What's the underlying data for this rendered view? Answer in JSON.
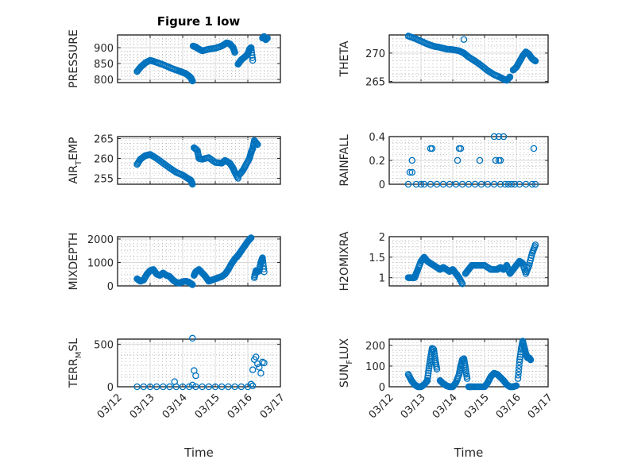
{
  "figure": {
    "title": "Figure 1 low",
    "marker_color": "#0072BD",
    "x_tick_labels": [
      "03/12",
      "03/13",
      "03/14",
      "03/15",
      "03/16",
      "03/17"
    ],
    "x_label": "Time"
  },
  "chart_data": [
    {
      "type": "scatter",
      "title": "Figure 1 low",
      "ylabel": "PRESSURE",
      "xlabel": "",
      "xlim": [
        0,
        5
      ],
      "ylim": [
        790,
        940
      ],
      "yticks": [
        800,
        850,
        900
      ],
      "xticks": [
        "03/12",
        "03/13",
        "03/14",
        "03/15",
        "03/16",
        "03/17"
      ],
      "grid": "on (major + minor)",
      "segments": [
        {
          "x": [
            0.6,
            0.7,
            0.85,
            1.0,
            1.1,
            1.3,
            1.5,
            1.7,
            1.9,
            2.0,
            2.1,
            2.2,
            2.25,
            2.3
          ],
          "y": [
            825,
            838,
            852,
            860,
            857,
            850,
            842,
            833,
            826,
            822,
            818,
            810,
            805,
            795
          ]
        },
        {
          "x": [
            2.32,
            2.4,
            2.5,
            2.6,
            2.8,
            3.0,
            3.2,
            3.35,
            3.45,
            3.55,
            3.6
          ],
          "y": [
            905,
            902,
            895,
            890,
            895,
            898,
            905,
            915,
            912,
            900,
            885
          ]
        },
        {
          "x": [
            3.7,
            3.75,
            3.8,
            3.9,
            4.0,
            4.05,
            4.1,
            4.15
          ],
          "y": [
            848,
            855,
            862,
            870,
            880,
            895,
            900,
            860
          ]
        },
        {
          "x": [
            4.45,
            4.5,
            4.55,
            4.6
          ],
          "y": [
            930,
            935,
            925,
            930
          ]
        }
      ]
    },
    {
      "type": "scatter",
      "ylabel": "THETA",
      "xlabel": "",
      "xlim": [
        0,
        5
      ],
      "ylim": [
        264.8,
        273.2
      ],
      "yticks": [
        265,
        270
      ],
      "xticks": [
        "03/12",
        "03/13",
        "03/14",
        "03/15",
        "03/16",
        "03/17"
      ],
      "grid": "on (major + minor)",
      "segments": [
        {
          "x": [
            0.6,
            0.8,
            1.0,
            1.2,
            1.4,
            1.6,
            1.8,
            2.0,
            2.2,
            2.35,
            2.5,
            2.7,
            2.9,
            3.1,
            3.3,
            3.5,
            3.6,
            3.7,
            3.8
          ],
          "y": [
            273,
            272.6,
            272.1,
            271.6,
            271.2,
            271.0,
            270.7,
            270.6,
            270.4,
            270.0,
            269.3,
            268.6,
            267.8,
            266.9,
            266.2,
            265.7,
            265.4,
            265.2,
            265.8
          ]
        },
        {
          "x": [
            3.9,
            4.0,
            4.1,
            4.2,
            4.3,
            4.4,
            4.5,
            4.6
          ],
          "y": [
            267.0,
            267.5,
            268.5,
            269.5,
            270.2,
            269.8,
            269.0,
            268.6
          ]
        },
        {
          "x": [
            2.35
          ],
          "y": [
            272.4
          ]
        }
      ]
    },
    {
      "type": "scatter",
      "ylabel": "AIR_TEMP",
      "xlabel": "",
      "xlim": [
        0,
        5
      ],
      "ylim": [
        253.5,
        265.5
      ],
      "yticks": [
        255,
        260,
        265
      ],
      "xticks": [
        "03/12",
        "03/13",
        "03/14",
        "03/15",
        "03/16",
        "03/17"
      ],
      "grid": "on (major + minor)",
      "segments": [
        {
          "x": [
            0.6,
            0.7,
            0.85,
            1.0,
            1.2,
            1.4,
            1.6,
            1.8,
            2.0,
            2.15,
            2.25,
            2.3
          ],
          "y": [
            258.5,
            259.8,
            260.7,
            261.0,
            260.0,
            258.8,
            257.6,
            256.5,
            255.8,
            255.0,
            254.5,
            253.5
          ]
        },
        {
          "x": [
            2.35,
            2.45,
            2.5,
            2.6,
            2.8,
            3.0,
            3.2,
            3.3,
            3.45,
            3.55,
            3.6,
            3.7
          ],
          "y": [
            262.7,
            262.0,
            260.0,
            259.8,
            260.2,
            259.0,
            258.8,
            259.5,
            258.8,
            257.5,
            256.5,
            255.0
          ]
        },
        {
          "x": [
            3.75,
            3.85,
            3.95,
            4.05,
            4.1,
            4.15,
            4.2,
            4.3
          ],
          "y": [
            256.0,
            257.0,
            258.5,
            260.0,
            261.5,
            262.5,
            264.5,
            263.5
          ]
        }
      ]
    },
    {
      "type": "scatter",
      "ylabel": "RAINFALL",
      "xlabel": "",
      "xlim": [
        0,
        5
      ],
      "ylim": [
        0,
        0.4
      ],
      "yticks": [
        0,
        0.2,
        0.4
      ],
      "xticks": [
        "03/12",
        "03/13",
        "03/14",
        "03/15",
        "03/16",
        "03/17"
      ],
      "grid": "on (major + minor)",
      "points": {
        "x": [
          0.6,
          0.65,
          0.72,
          0.72,
          0.85,
          1.0,
          1.1,
          1.3,
          1.5,
          1.7,
          1.9,
          2.1,
          2.3,
          2.5,
          2.7,
          2.9,
          3.1,
          3.3,
          3.5,
          3.65,
          3.75,
          3.85,
          3.95,
          4.1,
          4.3,
          4.5,
          4.6,
          1.3,
          1.35,
          2.2,
          2.25,
          2.15,
          2.85,
          3.35,
          3.45,
          3.5,
          3.3,
          3.45,
          3.6,
          4.55
        ],
        "y": [
          0,
          0.1,
          0.1,
          0.2,
          0,
          0,
          0,
          0,
          0,
          0,
          0,
          0,
          0,
          0,
          0,
          0,
          0,
          0,
          0,
          0,
          0,
          0,
          0,
          0,
          0,
          0,
          0,
          0.3,
          0.3,
          0.3,
          0.3,
          0.2,
          0.2,
          0.2,
          0.2,
          0.2,
          0.4,
          0.4,
          0.4,
          0.3
        ]
      }
    },
    {
      "type": "scatter",
      "ylabel": "MIXDEPTH",
      "xlabel": "",
      "xlim": [
        0,
        5
      ],
      "ylim": [
        0,
        2100
      ],
      "yticks": [
        0,
        1000,
        2000
      ],
      "xticks": [
        "03/12",
        "03/13",
        "03/14",
        "03/15",
        "03/16",
        "03/17"
      ],
      "grid": "on (major + minor)",
      "segments": [
        {
          "x": [
            0.6,
            0.7,
            0.8,
            0.9,
            1.0,
            1.1,
            1.2,
            1.3,
            1.4,
            1.5,
            1.6,
            1.7,
            1.8,
            1.9,
            2.0,
            2.1,
            2.2,
            2.3
          ],
          "y": [
            300,
            200,
            250,
            500,
            650,
            700,
            500,
            450,
            550,
            450,
            400,
            250,
            150,
            120,
            180,
            200,
            150,
            50
          ]
        },
        {
          "x": [
            2.35,
            2.4,
            2.5,
            2.6,
            2.7,
            2.8,
            2.9,
            3.0,
            3.1,
            3.2,
            3.3,
            3.4,
            3.5,
            3.6,
            3.7,
            3.8,
            3.9,
            4.0,
            4.1
          ],
          "y": [
            450,
            600,
            700,
            550,
            400,
            200,
            250,
            300,
            350,
            400,
            500,
            700,
            950,
            1150,
            1300,
            1500,
            1700,
            1900,
            2050
          ]
        },
        {
          "x": [
            4.2,
            4.25,
            4.3,
            4.35,
            4.4,
            4.45,
            4.5
          ],
          "y": [
            350,
            650,
            600,
            650,
            1000,
            1200,
            600
          ]
        }
      ]
    },
    {
      "type": "scatter",
      "ylabel": "H2OMIXRA",
      "xlabel": "",
      "xlim": [
        0,
        5
      ],
      "ylim": [
        0.8,
        2.0
      ],
      "yticks": [
        1,
        1.5,
        2
      ],
      "xticks": [
        "03/12",
        "03/13",
        "03/14",
        "03/15",
        "03/16",
        "03/17"
      ],
      "grid": "on (major + minor)",
      "segments": [
        {
          "x": [
            0.6,
            0.7,
            0.8,
            0.85,
            0.9,
            1.0,
            1.1,
            1.2,
            1.3,
            1.4,
            1.5,
            1.6,
            1.7,
            1.8,
            1.9,
            2.0,
            2.1,
            2.2,
            2.3
          ],
          "y": [
            1.0,
            1.0,
            1.0,
            1.1,
            1.2,
            1.4,
            1.5,
            1.4,
            1.35,
            1.3,
            1.25,
            1.2,
            1.25,
            1.2,
            1.15,
            1.2,
            1.1,
            1.0,
            0.85
          ]
        },
        {
          "x": [
            2.4,
            2.5,
            2.6,
            2.8,
            3.0,
            3.2,
            3.4,
            3.5,
            3.6,
            3.7,
            3.8,
            3.9,
            4.0,
            4.1,
            4.2,
            4.3,
            4.4,
            4.5,
            4.6
          ],
          "y": [
            1.1,
            1.2,
            1.3,
            1.3,
            1.3,
            1.2,
            1.2,
            1.25,
            1.2,
            1.3,
            1.1,
            1.2,
            1.3,
            1.4,
            1.35,
            1.1,
            1.3,
            1.6,
            1.8
          ]
        }
      ]
    },
    {
      "type": "scatter",
      "ylabel": "TERR_MSL",
      "xlabel": "Time",
      "xlim": [
        0,
        5
      ],
      "ylim": [
        0,
        560
      ],
      "yticks": [
        0,
        500
      ],
      "xticks": [
        "03/12",
        "03/13",
        "03/14",
        "03/15",
        "03/16",
        "03/17"
      ],
      "grid": "on (major + minor)",
      "points": {
        "x": [
          0.6,
          0.8,
          1.0,
          1.2,
          1.4,
          1.6,
          1.8,
          2.0,
          2.2,
          2.4,
          2.6,
          2.8,
          3.0,
          3.2,
          3.4,
          3.6,
          3.8,
          4.0,
          1.75,
          2.3,
          2.35,
          2.4,
          2.3,
          4.1,
          4.15,
          4.2,
          4.25,
          4.3,
          4.35,
          4.4,
          4.45,
          4.5,
          4.15
        ],
        "y": [
          0,
          0,
          0,
          0,
          0,
          0,
          0,
          0,
          0,
          0,
          0,
          0,
          0,
          0,
          0,
          0,
          0,
          0,
          60,
          570,
          190,
          130,
          20,
          30,
          200,
          320,
          350,
          270,
          230,
          160,
          290,
          280,
          10
        ]
      }
    },
    {
      "type": "scatter",
      "ylabel": "SUN_FLUX",
      "xlabel": "Time",
      "xlim": [
        0,
        5
      ],
      "ylim": [
        0,
        230
      ],
      "yticks": [
        0,
        100,
        200
      ],
      "xticks": [
        "03/12",
        "03/13",
        "03/14",
        "03/15",
        "03/16",
        "03/17"
      ],
      "grid": "on (major + minor)",
      "segments": [
        {
          "x": [
            0.6,
            0.7,
            0.8,
            0.9,
            1.0,
            1.1,
            1.2,
            1.25,
            1.3,
            1.35,
            1.4,
            1.45,
            1.5
          ],
          "y": [
            60,
            30,
            10,
            0,
            0,
            10,
            30,
            90,
            140,
            185,
            180,
            130,
            85
          ]
        },
        {
          "x": [
            1.6,
            1.7,
            1.8,
            1.9,
            2.0,
            2.1,
            2.2,
            2.25,
            2.3,
            2.35,
            2.4,
            2.45
          ],
          "y": [
            30,
            15,
            5,
            0,
            0,
            20,
            60,
            100,
            130,
            135,
            90,
            40
          ]
        },
        {
          "x": [
            2.5,
            2.6,
            2.8,
            3.0,
            3.1,
            3.2,
            3.3,
            3.4,
            3.5,
            3.6,
            3.7,
            3.8,
            3.9,
            4.0
          ],
          "y": [
            0,
            0,
            0,
            0,
            20,
            50,
            65,
            60,
            45,
            30,
            10,
            0,
            0,
            5
          ]
        },
        {
          "x": [
            4.05,
            4.1,
            4.15,
            4.2,
            4.25,
            4.3,
            4.35,
            4.4,
            4.45
          ],
          "y": [
            40,
            120,
            180,
            220,
            190,
            160,
            140,
            140,
            130
          ]
        }
      ]
    }
  ]
}
